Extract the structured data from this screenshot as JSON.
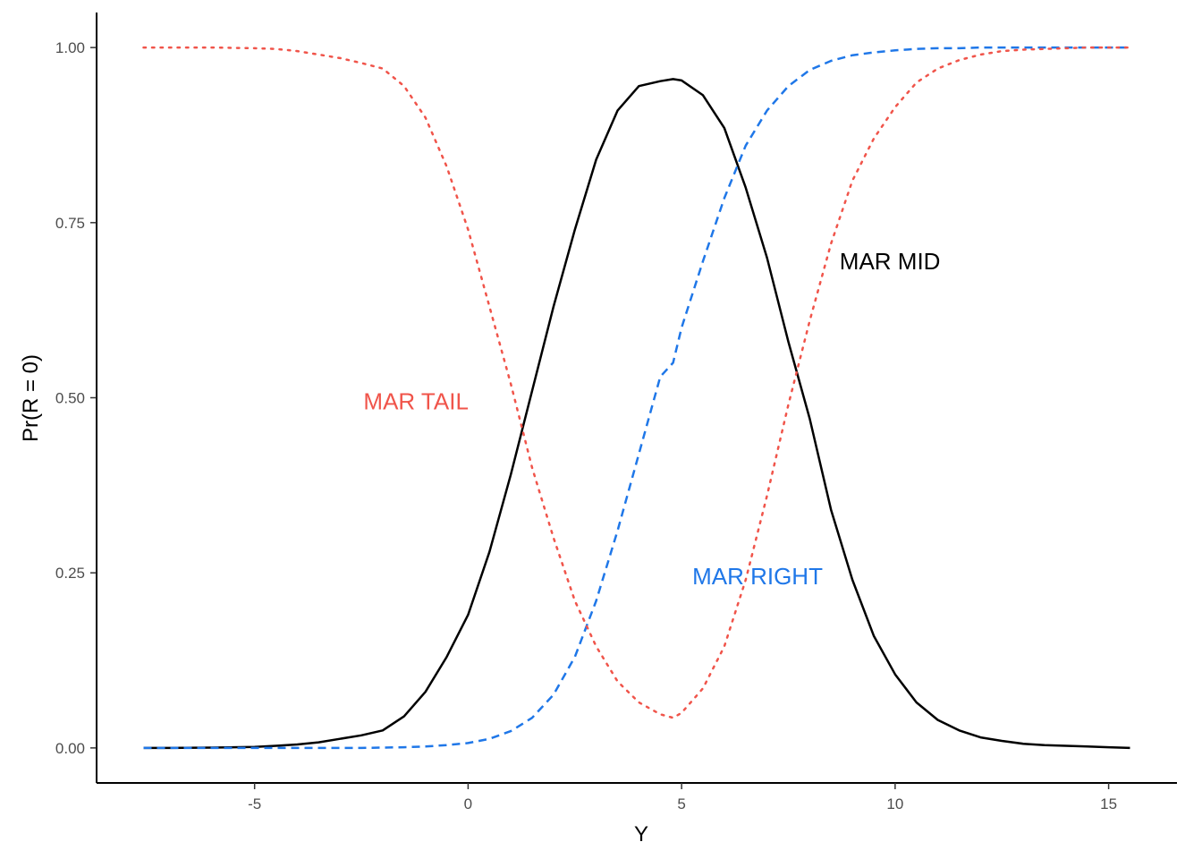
{
  "chart_data": {
    "type": "line",
    "title": "",
    "xlabel": "Y",
    "ylabel": "Pr(R = 0)",
    "xlim": [
      -8.7,
      16.6
    ],
    "ylim": [
      -0.05,
      1.05
    ],
    "x_ticks": [
      -5,
      0,
      5,
      10,
      15
    ],
    "x_tick_labels": [
      "-5",
      "0",
      "5",
      "10",
      "15"
    ],
    "y_ticks": [
      0,
      0.25,
      0.5,
      0.75,
      1
    ],
    "y_tick_labels": [
      "0.00",
      "0.25",
      "0.50",
      "0.75",
      "1.00"
    ],
    "grid": false,
    "legend": "none",
    "x": [
      -7.6,
      -7.0,
      -6.0,
      -5.0,
      -4.5,
      -4.0,
      -3.5,
      -3.0,
      -2.5,
      -2.0,
      -1.5,
      -1.0,
      -0.5,
      0.0,
      0.5,
      1.0,
      1.5,
      2.0,
      2.5,
      3.0,
      3.5,
      4.0,
      4.5,
      4.8,
      5.0,
      5.5,
      6.0,
      6.5,
      7.0,
      7.5,
      8.0,
      8.5,
      9.0,
      9.5,
      10.0,
      10.5,
      11.0,
      11.5,
      12.0,
      12.5,
      13.0,
      13.5,
      14.0,
      14.5,
      15.0,
      15.5
    ],
    "series": [
      {
        "name": "MAR MID",
        "color": "#000000",
        "dash": "solid",
        "label_x": 8.7,
        "label_y": 0.695,
        "values": [
          0.0,
          0.0,
          0.0005,
          0.0015,
          0.003,
          0.005,
          0.008,
          0.013,
          0.018,
          0.025,
          0.045,
          0.08,
          0.13,
          0.19,
          0.28,
          0.39,
          0.51,
          0.63,
          0.74,
          0.84,
          0.91,
          0.945,
          0.952,
          0.955,
          0.953,
          0.932,
          0.885,
          0.8,
          0.7,
          0.58,
          0.47,
          0.34,
          0.24,
          0.16,
          0.105,
          0.065,
          0.04,
          0.025,
          0.015,
          0.01,
          0.006,
          0.004,
          0.003,
          0.002,
          0.001,
          0.0
        ]
      },
      {
        "name": "MAR RIGHT",
        "color": "#1f77e8",
        "dash": "dashed",
        "label_x": 5.25,
        "label_y": 0.245,
        "values": [
          0.0,
          0.0,
          0.0,
          0.0,
          0.0,
          0.0,
          0.0,
          0.0,
          0.0,
          0.0005,
          0.001,
          0.002,
          0.004,
          0.007,
          0.013,
          0.024,
          0.043,
          0.076,
          0.13,
          0.21,
          0.31,
          0.42,
          0.53,
          0.55,
          0.6,
          0.695,
          0.785,
          0.86,
          0.91,
          0.945,
          0.968,
          0.981,
          0.989,
          0.993,
          0.996,
          0.998,
          0.999,
          0.999,
          1.0,
          1.0,
          1.0,
          1.0,
          1.0,
          1.0,
          1.0,
          1.0
        ]
      },
      {
        "name": "MAR TAIL",
        "color": "#f0544a",
        "dash": "dotted",
        "label_x": -2.45,
        "label_y": 0.495,
        "values": [
          1.0,
          1.0,
          1.0,
          0.999,
          0.998,
          0.995,
          0.99,
          0.985,
          0.978,
          0.97,
          0.945,
          0.9,
          0.83,
          0.74,
          0.63,
          0.52,
          0.4,
          0.3,
          0.21,
          0.145,
          0.095,
          0.065,
          0.048,
          0.043,
          0.05,
          0.085,
          0.145,
          0.24,
          0.36,
          0.49,
          0.61,
          0.72,
          0.81,
          0.87,
          0.915,
          0.95,
          0.97,
          0.982,
          0.99,
          0.995,
          0.997,
          0.998,
          0.999,
          1.0,
          1.0,
          1.0
        ]
      }
    ]
  }
}
